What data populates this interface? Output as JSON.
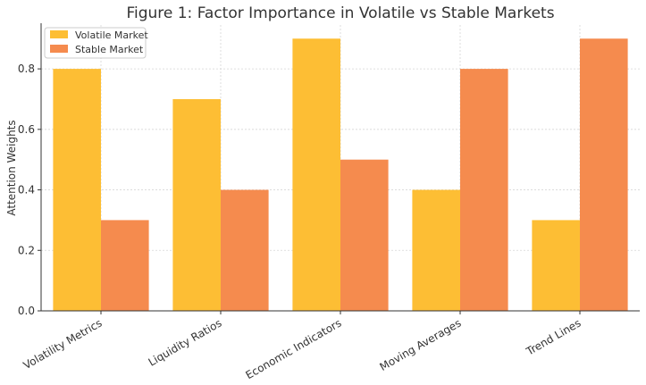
{
  "chart_data": {
    "type": "bar",
    "title": "Figure 1: Factor Importance in Volatile vs Stable Markets",
    "xlabel": "",
    "ylabel": "Attention Weights",
    "categories": [
      "Volatility Metrics",
      "Liquidity Ratios",
      "Economic Indicators",
      "Moving Averages",
      "Trend Lines"
    ],
    "series": [
      {
        "name": "Volatile Market",
        "values": [
          0.8,
          0.7,
          0.9,
          0.4,
          0.3
        ],
        "color": "#FDBE34"
      },
      {
        "name": "Stable Market",
        "values": [
          0.3,
          0.4,
          0.5,
          0.8,
          0.9
        ],
        "color": "#F58B4E"
      }
    ],
    "ylim": [
      0,
      0.945
    ],
    "yticks": [
      "0.0",
      "0.2",
      "0.4",
      "0.6",
      "0.8"
    ],
    "grid": true,
    "legend_position": "top-left"
  }
}
